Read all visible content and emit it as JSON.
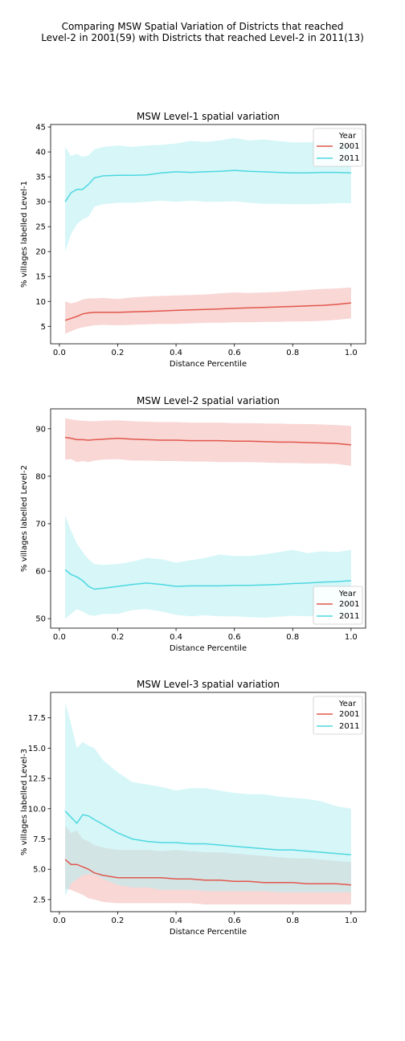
{
  "figure": {
    "suptitle_line1": "Comparing MSW Spatial Variation of Districts that reached",
    "suptitle_line2": "Level-2 in 2001(59) with Districts that reached Level-2 in 2011(13)"
  },
  "colors": {
    "2001": "#e2574c",
    "2011": "#4dd8e0",
    "band_2001": "#f2b7b2",
    "band_2011": "#b5eef2"
  },
  "chart_data": [
    {
      "type": "line",
      "title": "MSW Level-1 spatial variation",
      "xlabel": "Distance Percentile",
      "ylabel": "% villages labelled Level-1",
      "xlim": [
        -0.03,
        1.05
      ],
      "ylim": [
        1.5,
        45.5
      ],
      "xticks": [
        0.0,
        0.2,
        0.4,
        0.6,
        0.8,
        1.0
      ],
      "yticks": [
        5,
        10,
        15,
        20,
        25,
        30,
        35,
        40,
        45
      ],
      "legend": {
        "title": "Year",
        "position": "top-right"
      },
      "x": [
        0.02,
        0.04,
        0.06,
        0.08,
        0.1,
        0.12,
        0.15,
        0.2,
        0.25,
        0.3,
        0.35,
        0.4,
        0.45,
        0.5,
        0.55,
        0.6,
        0.65,
        0.7,
        0.75,
        0.8,
        0.85,
        0.9,
        0.95,
        1.0
      ],
      "series": [
        {
          "name": "2001",
          "values": [
            6.2,
            6.6,
            7.0,
            7.5,
            7.7,
            7.8,
            7.8,
            7.8,
            7.9,
            8.0,
            8.1,
            8.2,
            8.3,
            8.4,
            8.5,
            8.6,
            8.7,
            8.8,
            8.9,
            9.0,
            9.1,
            9.2,
            9.4,
            9.7
          ],
          "lower": [
            3.5,
            4.0,
            4.5,
            4.8,
            5.0,
            5.2,
            5.3,
            5.2,
            5.3,
            5.4,
            5.5,
            5.5,
            5.6,
            5.7,
            5.7,
            5.8,
            5.8,
            5.9,
            5.9,
            6.0,
            6.0,
            6.1,
            6.3,
            6.6
          ],
          "upper": [
            10.0,
            9.6,
            9.9,
            10.4,
            10.6,
            10.6,
            10.7,
            10.5,
            10.8,
            11.0,
            11.1,
            11.2,
            11.3,
            11.4,
            11.6,
            11.8,
            11.7,
            11.8,
            11.9,
            12.1,
            12.3,
            12.5,
            12.6,
            12.8
          ]
        },
        {
          "name": "2011",
          "values": [
            30.0,
            31.8,
            32.5,
            32.5,
            33.5,
            34.8,
            35.2,
            35.3,
            35.3,
            35.4,
            35.8,
            36.0,
            35.9,
            36.0,
            36.1,
            36.3,
            36.1,
            36.0,
            35.9,
            35.8,
            35.8,
            35.9,
            35.9,
            35.8
          ],
          "lower": [
            20.0,
            23.5,
            25.5,
            26.5,
            27.0,
            29.0,
            29.5,
            29.8,
            29.8,
            30.0,
            30.2,
            30.0,
            30.2,
            30.0,
            30.0,
            30.1,
            29.8,
            29.6,
            29.6,
            29.5,
            29.5,
            29.6,
            29.7,
            29.7
          ],
          "upper": [
            41.0,
            39.2,
            39.6,
            39.0,
            39.3,
            40.5,
            41.0,
            41.3,
            41.0,
            41.3,
            41.4,
            41.7,
            42.2,
            42.0,
            42.3,
            42.8,
            42.3,
            42.5,
            42.2,
            41.9,
            41.9,
            42.1,
            42.0,
            41.8
          ]
        }
      ]
    },
    {
      "type": "line",
      "title": "MSW Level-2 spatial variation",
      "xlabel": "Distance Percentile",
      "ylabel": "% villages labelled Level-2",
      "xlim": [
        -0.03,
        1.05
      ],
      "ylim": [
        48,
        94.2
      ],
      "xticks": [
        0.0,
        0.2,
        0.4,
        0.6,
        0.8,
        1.0
      ],
      "yticks": [
        50,
        60,
        70,
        80,
        90
      ],
      "legend": {
        "title": "Year",
        "position": "bottom-right"
      },
      "x": [
        0.02,
        0.04,
        0.06,
        0.08,
        0.1,
        0.12,
        0.15,
        0.2,
        0.25,
        0.3,
        0.35,
        0.4,
        0.45,
        0.5,
        0.55,
        0.6,
        0.65,
        0.7,
        0.75,
        0.8,
        0.85,
        0.9,
        0.95,
        1.0
      ],
      "series": [
        {
          "name": "2001",
          "values": [
            88.2,
            88.0,
            87.7,
            87.7,
            87.6,
            87.7,
            87.8,
            88.0,
            87.8,
            87.7,
            87.6,
            87.6,
            87.5,
            87.5,
            87.5,
            87.4,
            87.4,
            87.3,
            87.2,
            87.2,
            87.1,
            87.0,
            86.9,
            86.6
          ],
          "lower": [
            83.5,
            83.6,
            83.0,
            83.2,
            83.0,
            83.3,
            83.5,
            83.6,
            83.3,
            83.3,
            83.2,
            83.2,
            83.1,
            83.1,
            83.0,
            83.0,
            83.0,
            82.9,
            82.8,
            82.8,
            82.7,
            82.7,
            82.6,
            82.2
          ],
          "upper": [
            92.2,
            92.0,
            91.8,
            91.7,
            91.6,
            91.6,
            91.7,
            91.8,
            91.6,
            91.5,
            91.4,
            91.4,
            91.3,
            91.3,
            91.3,
            91.2,
            91.2,
            91.1,
            91.1,
            91.0,
            91.0,
            90.9,
            90.8,
            90.6
          ]
        },
        {
          "name": "2011",
          "values": [
            60.3,
            59.3,
            58.8,
            58.0,
            56.8,
            56.2,
            56.4,
            56.8,
            57.2,
            57.5,
            57.2,
            56.8,
            56.9,
            56.9,
            56.9,
            57.0,
            57.0,
            57.1,
            57.2,
            57.4,
            57.5,
            57.7,
            57.8,
            58.0
          ],
          "lower": [
            50.0,
            51.0,
            52.0,
            51.5,
            50.8,
            50.6,
            51.0,
            51.0,
            51.8,
            52.0,
            51.5,
            50.8,
            50.5,
            50.7,
            50.5,
            50.5,
            50.3,
            50.2,
            50.4,
            50.6,
            50.5,
            50.6,
            50.6,
            50.8
          ],
          "upper": [
            71.8,
            68.5,
            65.8,
            64.0,
            62.5,
            61.5,
            61.3,
            61.5,
            62.0,
            62.8,
            62.5,
            61.8,
            62.3,
            62.8,
            63.5,
            63.2,
            63.2,
            63.5,
            64.0,
            64.5,
            63.8,
            64.2,
            64.0,
            64.5
          ]
        }
      ]
    },
    {
      "type": "line",
      "title": "MSW Level-3 spatial variation",
      "xlabel": "Distance Percentile",
      "ylabel": "% villages labelled Level-3",
      "xlim": [
        -0.03,
        1.05
      ],
      "ylim": [
        1.5,
        19.6
      ],
      "xticks": [
        0.0,
        0.2,
        0.4,
        0.6,
        0.8,
        1.0
      ],
      "yticks": [
        2.5,
        5.0,
        7.5,
        10.0,
        12.5,
        15.0,
        17.5
      ],
      "legend": {
        "title": "Year",
        "position": "top-right"
      },
      "x": [
        0.02,
        0.04,
        0.06,
        0.08,
        0.1,
        0.12,
        0.15,
        0.2,
        0.25,
        0.3,
        0.35,
        0.4,
        0.45,
        0.5,
        0.55,
        0.6,
        0.65,
        0.7,
        0.75,
        0.8,
        0.85,
        0.9,
        0.95,
        1.0
      ],
      "series": [
        {
          "name": "2001",
          "values": [
            5.8,
            5.4,
            5.4,
            5.2,
            5.0,
            4.7,
            4.5,
            4.3,
            4.3,
            4.3,
            4.3,
            4.2,
            4.2,
            4.1,
            4.1,
            4.0,
            4.0,
            3.9,
            3.9,
            3.9,
            3.8,
            3.8,
            3.8,
            3.7
          ],
          "lower": [
            3.4,
            3.3,
            3.1,
            2.9,
            2.6,
            2.5,
            2.3,
            2.2,
            2.2,
            2.2,
            2.2,
            2.2,
            2.2,
            2.1,
            2.1,
            2.1,
            2.1,
            2.1,
            2.1,
            2.1,
            2.1,
            2.1,
            2.1,
            2.1
          ],
          "upper": [
            8.6,
            8.0,
            8.2,
            7.5,
            7.3,
            7.0,
            6.8,
            6.6,
            6.6,
            6.6,
            6.5,
            6.6,
            6.5,
            6.4,
            6.4,
            6.3,
            6.2,
            6.1,
            6.0,
            5.9,
            5.9,
            5.8,
            5.7,
            5.6
          ]
        },
        {
          "name": "2011",
          "values": [
            9.8,
            9.3,
            8.8,
            9.5,
            9.4,
            9.1,
            8.7,
            8.0,
            7.5,
            7.3,
            7.2,
            7.2,
            7.1,
            7.1,
            7.0,
            6.9,
            6.8,
            6.7,
            6.6,
            6.6,
            6.5,
            6.4,
            6.3,
            6.2
          ],
          "lower": [
            2.8,
            3.8,
            4.2,
            4.5,
            4.6,
            4.6,
            4.2,
            3.7,
            3.5,
            3.5,
            3.3,
            3.3,
            3.3,
            3.2,
            3.2,
            3.2,
            3.2,
            3.2,
            3.1,
            3.1,
            3.1,
            3.1,
            3.1,
            3.1
          ],
          "upper": [
            18.8,
            17.0,
            15.0,
            15.5,
            15.2,
            15.0,
            14.0,
            13.0,
            12.2,
            12.0,
            11.8,
            11.5,
            11.7,
            11.7,
            11.5,
            11.3,
            11.2,
            11.2,
            11.0,
            10.9,
            10.8,
            10.6,
            10.2,
            10.0
          ]
        }
      ]
    }
  ]
}
